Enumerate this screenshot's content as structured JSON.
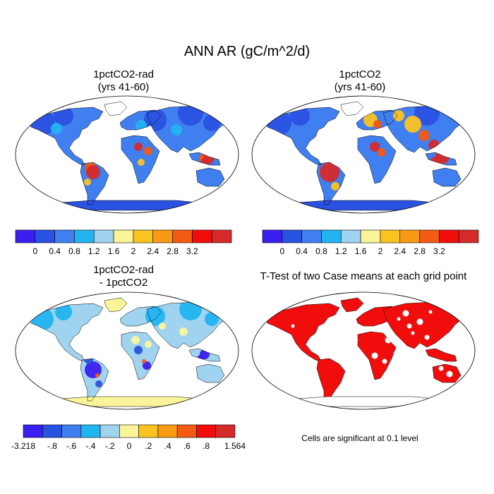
{
  "title": "ANN AR (gC/m^2/d)",
  "panels": {
    "p1": {
      "line1": "1pctCO2-rad",
      "line2": "(yrs 41-60)"
    },
    "p2": {
      "line1": "1pctCO2",
      "line2": "(yrs 41-60)"
    },
    "p3": {
      "line1": "1pctCO2-rad",
      "line2": "- 1pctCO2"
    },
    "p4": {
      "line1": "T-Test of two Case means at each grid point"
    }
  },
  "significance_note": "Cells are significant at 0.1 level",
  "chart_data": [
    {
      "type": "heatmap",
      "title": "1pctCO2-rad (yrs 41-60)",
      "colorbar": {
        "colors": [
          "#3b1ff0",
          "#2a52e0",
          "#3f7ff0",
          "#22b4f0",
          "#9fd3f0",
          "#fbf59a",
          "#fbc322",
          "#f99a14",
          "#f35a12",
          "#f20d0d",
          "#d62a2a"
        ],
        "tick_labels": [
          "0",
          "0.4",
          "0.8",
          "1.2",
          "1.6",
          "2",
          "2.4",
          "2.8",
          "3.2"
        ]
      }
    },
    {
      "type": "heatmap",
      "title": "1pctCO2 (yrs 41-60)",
      "colorbar": {
        "colors": [
          "#3b1ff0",
          "#2a52e0",
          "#3f7ff0",
          "#22b4f0",
          "#9fd3f0",
          "#fbf59a",
          "#fbc322",
          "#f99a14",
          "#f35a12",
          "#f20d0d",
          "#d62a2a"
        ],
        "tick_labels": [
          "0",
          "0.4",
          "0.8",
          "1.2",
          "1.6",
          "2",
          "2.4",
          "2.8",
          "3.2"
        ]
      }
    },
    {
      "type": "heatmap",
      "title": "1pctCO2-rad - 1pctCO2",
      "colorbar": {
        "colors": [
          "#3b1ff0",
          "#2a52e0",
          "#3f7ff0",
          "#22b4f0",
          "#9fd3f0",
          "#fbf59a",
          "#fbc322",
          "#f99a14",
          "#f35a12",
          "#f20d0d",
          "#d62a2a"
        ],
        "tick_labels": [
          "-3.218",
          "-.8",
          "-.6",
          "-.4",
          "-.2",
          "0",
          ".2",
          ".4",
          ".6",
          ".8",
          "1.564"
        ]
      }
    },
    {
      "type": "heatmap",
      "title": "T-Test of two Case means at each grid point",
      "significant_color": "#f20d0d"
    }
  ]
}
